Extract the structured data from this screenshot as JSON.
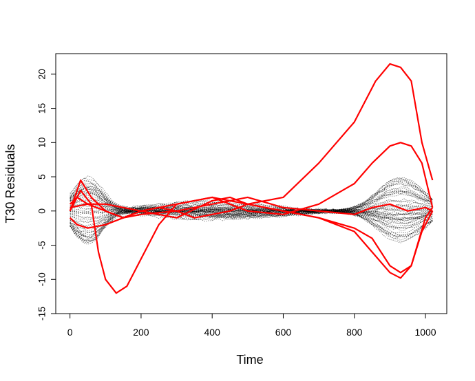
{
  "chart_data": {
    "type": "line",
    "title": "",
    "xlabel": "Time",
    "ylabel": "T30 Residuals",
    "xlim": [
      -40,
      1060
    ],
    "ylim": [
      -15,
      23
    ],
    "x_ticks": [
      0,
      200,
      400,
      600,
      800,
      1000
    ],
    "y_ticks": [
      -15,
      -10,
      -5,
      0,
      5,
      10,
      15,
      20
    ],
    "grid": false,
    "legend": "none",
    "background_series": {
      "count": 60,
      "color": "#000000",
      "style": "dotted",
      "description_values": "many gray dotted residual curves concentrated between -8 and 8"
    },
    "highlighted_series": [
      {
        "color": "#ff0000",
        "x": [
          0,
          30,
          60,
          80,
          100,
          130,
          160,
          200,
          250,
          300,
          400,
          500,
          600,
          700,
          800,
          860,
          900,
          930,
          960,
          990,
          1020
        ],
        "y": [
          0,
          3,
          1,
          -6,
          -10,
          -12,
          -11,
          -7,
          -2,
          1,
          2,
          1,
          2,
          7,
          13,
          19,
          21.5,
          21,
          19,
          10,
          4.5
        ]
      },
      {
        "color": "#ff0000",
        "x": [
          0,
          30,
          60,
          100,
          150,
          200,
          250,
          300,
          400,
          450,
          500,
          600,
          700,
          800,
          850,
          900,
          930,
          960,
          990,
          1020
        ],
        "y": [
          0,
          4.5,
          2,
          0,
          -1,
          0,
          0.5,
          1,
          2,
          1,
          0,
          -0.5,
          1,
          4,
          7,
          9.5,
          10,
          9.5,
          7,
          0.5
        ]
      },
      {
        "color": "#ff0000",
        "x": [
          0,
          20,
          50,
          100,
          150,
          200,
          250,
          300,
          400,
          450,
          500,
          600,
          700,
          800,
          850,
          900,
          930,
          960,
          990,
          1020
        ],
        "y": [
          1,
          2,
          1,
          1,
          0.5,
          0,
          -0.5,
          -1,
          1.5,
          2,
          1,
          0,
          -1,
          -3,
          -6,
          -9,
          -9.8,
          -8,
          -3,
          0
        ]
      },
      {
        "color": "#ff0000",
        "x": [
          0,
          20,
          50,
          100,
          150,
          200,
          250,
          300,
          350,
          400,
          450,
          500,
          600,
          700,
          800,
          850,
          900,
          930,
          960,
          1000,
          1020
        ],
        "y": [
          -1,
          -2,
          -2.5,
          -2,
          -1,
          0,
          0.5,
          0,
          -1,
          -0.5,
          0,
          1,
          0,
          -1,
          -2.5,
          -4,
          -8,
          -9,
          -8,
          -1,
          0.5
        ]
      },
      {
        "color": "#ff0000",
        "x": [
          0,
          50,
          100,
          150,
          200,
          300,
          400,
          500,
          600,
          700,
          800,
          850,
          900,
          950,
          1000,
          1020
        ],
        "y": [
          0.5,
          1,
          0,
          -1,
          -0.5,
          0,
          1,
          2,
          0.5,
          0,
          -0.5,
          0.5,
          1,
          0,
          0.5,
          0
        ]
      }
    ]
  }
}
